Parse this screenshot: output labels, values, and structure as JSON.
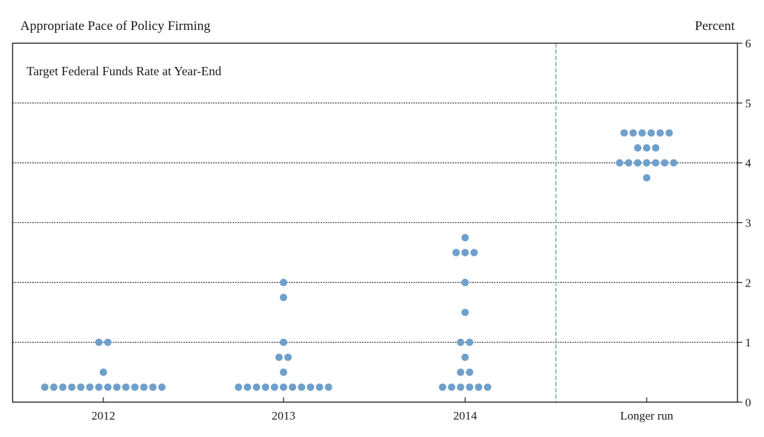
{
  "figure": {
    "title": "Appropriate Pace of Policy Firming",
    "unit": "Percent"
  },
  "chart_data": {
    "type": "scatter",
    "subtitle": "Target Federal Funds Rate at Year-End",
    "categories": [
      "2012",
      "2013",
      "2014",
      "Longer run"
    ],
    "ylim": [
      0,
      6
    ],
    "yticks": [
      "0",
      "1",
      "2",
      "3",
      "4",
      "5",
      "6"
    ],
    "grid": true,
    "dot_color": "#6fa0cb",
    "separator_color": "#5b9bb0",
    "dots": [
      {
        "category": "2012",
        "y": 0.25,
        "count": 14
      },
      {
        "category": "2012",
        "y": 0.5,
        "count": 1
      },
      {
        "category": "2012",
        "y": 1.0,
        "count": 2
      },
      {
        "category": "2013",
        "y": 0.25,
        "count": 11
      },
      {
        "category": "2013",
        "y": 0.5,
        "count": 1
      },
      {
        "category": "2013",
        "y": 0.75,
        "count": 2
      },
      {
        "category": "2013",
        "y": 1.0,
        "count": 1
      },
      {
        "category": "2013",
        "y": 1.75,
        "count": 1
      },
      {
        "category": "2013",
        "y": 2.0,
        "count": 1
      },
      {
        "category": "2014",
        "y": 0.25,
        "count": 6
      },
      {
        "category": "2014",
        "y": 0.5,
        "count": 2
      },
      {
        "category": "2014",
        "y": 0.75,
        "count": 1
      },
      {
        "category": "2014",
        "y": 1.0,
        "count": 2
      },
      {
        "category": "2014",
        "y": 1.5,
        "count": 1
      },
      {
        "category": "2014",
        "y": 2.0,
        "count": 1
      },
      {
        "category": "2014",
        "y": 2.5,
        "count": 3
      },
      {
        "category": "2014",
        "y": 2.75,
        "count": 1
      },
      {
        "category": "Longer run",
        "y": 3.75,
        "count": 1
      },
      {
        "category": "Longer run",
        "y": 4.0,
        "count": 7
      },
      {
        "category": "Longer run",
        "y": 4.25,
        "count": 3
      },
      {
        "category": "Longer run",
        "y": 4.5,
        "count": 6
      }
    ]
  }
}
